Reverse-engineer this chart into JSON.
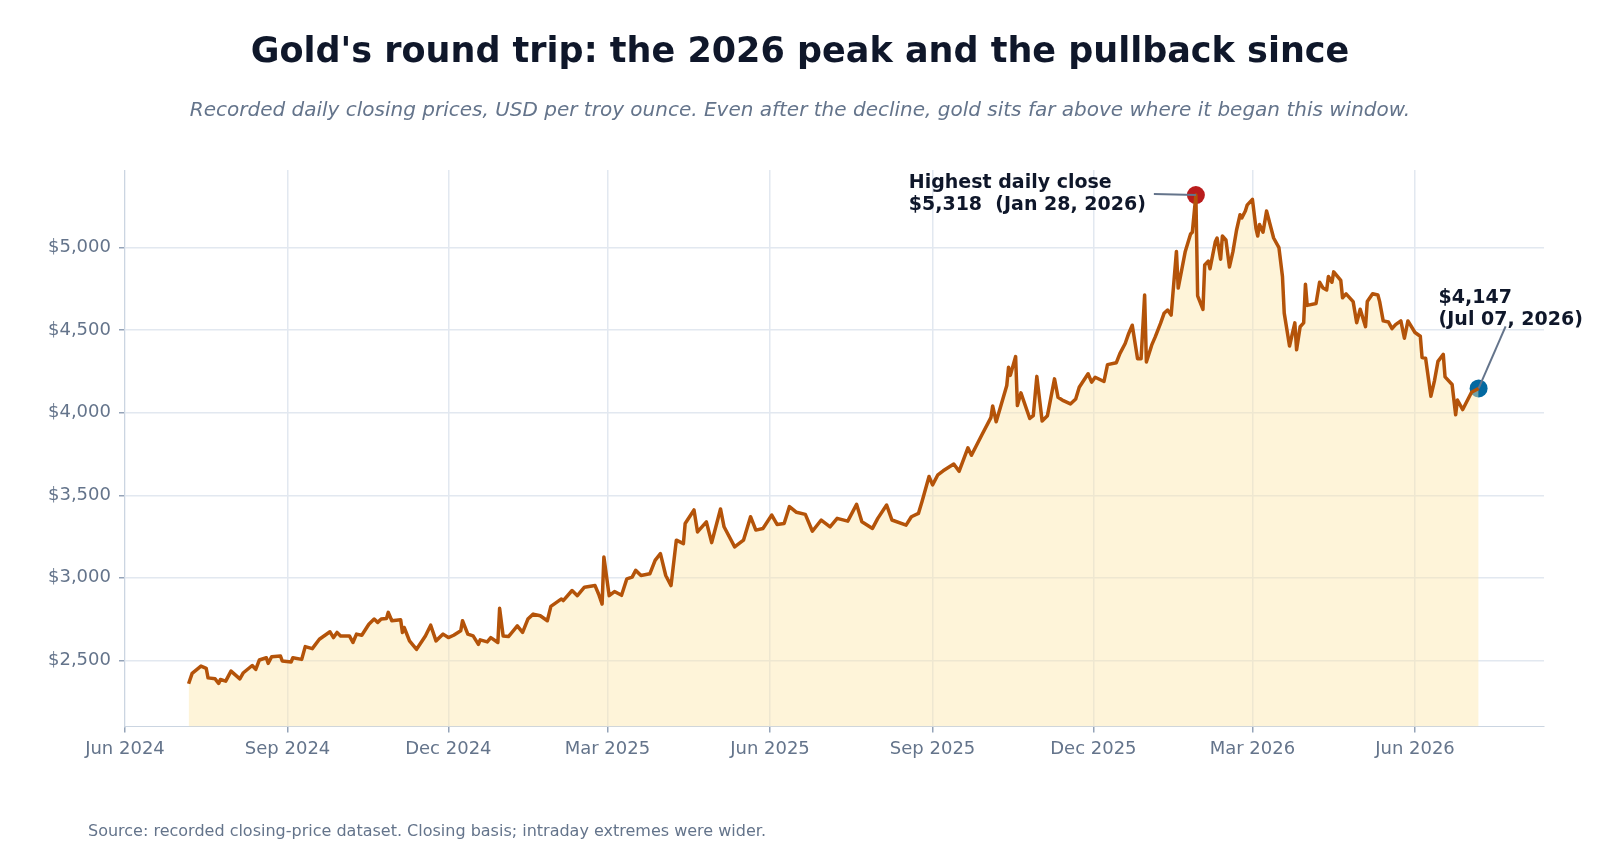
{
  "chart_data": {
    "type": "area",
    "title": "Gold's round trip: the 2026 peak and the pullback since",
    "subtitle": "Recorded daily closing prices, USD per troy ounce. Even after the decline, gold sits far above where it began this window.",
    "xlim": [
      "2024-06-01",
      "2026-08-13"
    ],
    "xticks": [
      {
        "value": "2024-06-01",
        "label": "Jun 2024"
      },
      {
        "value": "2024-09-01",
        "label": "Sep 2024"
      },
      {
        "value": "2024-12-01",
        "label": "Dec 2024"
      },
      {
        "value": "2025-03-01",
        "label": "Mar 2025"
      },
      {
        "value": "2025-06-01",
        "label": "Jun 2025"
      },
      {
        "value": "2025-09-01",
        "label": "Sep 2025"
      },
      {
        "value": "2025-12-01",
        "label": "Dec 2025"
      },
      {
        "value": "2026-03-01",
        "label": "Mar 2026"
      },
      {
        "value": "2026-06-01",
        "label": "Jun 2026"
      }
    ],
    "ylim": [
      2100,
      5470
    ],
    "yticks": [
      {
        "value": 2500,
        "label": "$2,500"
      },
      {
        "value": 3000,
        "label": "$3,000"
      },
      {
        "value": 3500,
        "label": "$3,500"
      },
      {
        "value": 4000,
        "label": "$4,000"
      },
      {
        "value": 4500,
        "label": "$4,500"
      },
      {
        "value": 5000,
        "label": "$5,000"
      }
    ],
    "grid": true,
    "legend": false,
    "series": [
      {
        "color": "#b45309",
        "x": [
          "2024-07-07",
          "2024-07-09",
          "2024-07-14",
          "2024-07-17",
          "2024-07-18",
          "2024-07-22",
          "2024-07-24",
          "2024-07-25",
          "2024-07-28",
          "2024-07-31",
          "2024-08-05",
          "2024-08-07",
          "2024-08-12",
          "2024-08-14",
          "2024-08-16",
          "2024-08-20",
          "2024-08-21",
          "2024-08-23",
          "2024-08-28",
          "2024-08-29",
          "2024-09-03",
          "2024-09-04",
          "2024-09-09",
          "2024-09-11",
          "2024-09-15",
          "2024-09-19",
          "2024-09-25",
          "2024-09-27",
          "2024-09-29",
          "2024-10-01",
          "2024-10-06",
          "2024-10-08",
          "2024-10-10",
          "2024-10-13",
          "2024-10-17",
          "2024-10-20",
          "2024-10-22",
          "2024-10-24",
          "2024-10-27",
          "2024-10-28",
          "2024-10-30",
          "2024-11-04",
          "2024-11-05",
          "2024-11-06",
          "2024-11-09",
          "2024-11-13",
          "2024-11-18",
          "2024-11-21",
          "2024-11-24",
          "2024-11-28",
          "2024-12-01",
          "2024-12-04",
          "2024-12-08",
          "2024-12-09",
          "2024-12-12",
          "2024-12-15",
          "2024-12-18",
          "2024-12-19",
          "2024-12-23",
          "2024-12-25",
          "2024-12-29",
          "2024-12-30",
          "2025-01-01",
          "2025-01-04",
          "2025-01-09",
          "2025-01-12",
          "2025-01-15",
          "2025-01-18",
          "2025-01-22",
          "2025-01-26",
          "2025-01-28",
          "2025-02-03",
          "2025-02-04",
          "2025-02-09",
          "2025-02-12",
          "2025-02-16",
          "2025-02-22",
          "2025-02-24",
          "2025-02-26",
          "2025-02-27",
          "2025-03-02",
          "2025-03-05",
          "2025-03-09",
          "2025-03-12",
          "2025-03-15",
          "2025-03-17",
          "2025-03-20",
          "2025-03-25",
          "2025-03-28",
          "2025-03-31",
          "2025-04-03",
          "2025-04-06",
          "2025-04-09",
          "2025-04-13",
          "2025-04-14",
          "2025-04-19",
          "2025-04-21",
          "2025-04-26",
          "2025-04-29",
          "2025-05-04",
          "2025-05-06",
          "2025-05-12",
          "2025-05-17",
          "2025-05-21",
          "2025-05-24",
          "2025-05-28",
          "2025-06-02",
          "2025-06-05",
          "2025-06-09",
          "2025-06-12",
          "2025-06-16",
          "2025-06-21",
          "2025-06-25",
          "2025-06-30",
          "2025-07-05",
          "2025-07-09",
          "2025-07-15",
          "2025-07-20",
          "2025-07-23",
          "2025-07-29",
          "2025-08-01",
          "2025-08-06",
          "2025-08-09",
          "2025-08-17",
          "2025-08-20",
          "2025-08-24",
          "2025-08-26",
          "2025-08-30",
          "2025-09-01",
          "2025-09-04",
          "2025-09-07",
          "2025-09-13",
          "2025-09-16",
          "2025-09-21",
          "2025-09-23",
          "2025-09-29",
          "2025-10-04",
          "2025-10-05",
          "2025-10-07",
          "2025-10-13",
          "2025-10-14",
          "2025-10-15",
          "2025-10-18",
          "2025-10-19",
          "2025-10-21",
          "2025-10-26",
          "2025-10-28",
          "2025-10-30",
          "2025-11-02",
          "2025-11-05",
          "2025-11-09",
          "2025-11-11",
          "2025-11-14",
          "2025-11-18",
          "2025-11-21",
          "2025-11-23",
          "2025-11-28",
          "2025-11-30",
          "2025-12-02",
          "2025-12-07",
          "2025-12-09",
          "2025-12-14",
          "2025-12-16",
          "2025-12-19",
          "2025-12-21",
          "2025-12-23",
          "2025-12-26",
          "2025-12-28",
          "2025-12-30",
          "2025-12-31",
          "2026-01-03",
          "2026-01-05",
          "2026-01-08",
          "2026-01-10",
          "2026-01-12",
          "2026-01-14",
          "2026-01-17",
          "2026-01-18",
          "2026-01-22",
          "2026-01-25",
          "2026-01-26",
          "2026-01-28",
          "2026-01-29",
          "2026-02-01",
          "2026-02-02",
          "2026-02-04",
          "2026-02-05",
          "2026-02-08",
          "2026-02-09",
          "2026-02-11",
          "2026-02-12",
          "2026-02-14",
          "2026-02-16",
          "2026-02-18",
          "2026-02-20",
          "2026-02-22",
          "2026-02-23",
          "2026-02-25",
          "2026-02-26",
          "2026-03-01",
          "2026-03-03",
          "2026-03-04",
          "2026-03-05",
          "2026-03-07",
          "2026-03-09",
          "2026-03-13",
          "2026-03-16",
          "2026-03-18",
          "2026-03-19",
          "2026-03-22",
          "2026-03-25",
          "2026-03-26",
          "2026-03-28",
          "2026-03-30",
          "2026-03-31",
          "2026-04-01",
          "2026-04-06",
          "2026-04-08",
          "2026-04-10",
          "2026-04-12",
          "2026-04-13",
          "2026-04-15",
          "2026-04-16",
          "2026-04-20",
          "2026-04-21",
          "2026-04-23",
          "2026-04-27",
          "2026-04-29",
          "2026-05-01",
          "2026-05-04",
          "2026-05-05",
          "2026-05-08",
          "2026-05-11",
          "2026-05-12",
          "2026-05-14",
          "2026-05-17",
          "2026-05-19",
          "2026-05-21",
          "2026-05-24",
          "2026-05-26",
          "2026-05-28",
          "2026-06-01",
          "2026-06-04",
          "2026-06-05",
          "2026-06-07",
          "2026-06-10",
          "2026-06-12",
          "2026-06-14",
          "2026-06-17",
          "2026-06-18",
          "2026-06-22",
          "2026-06-24",
          "2026-06-25",
          "2026-06-28",
          "2026-07-03",
          "2026-07-07"
        ],
        "values": [
          2358,
          2421,
          2465,
          2451,
          2394,
          2388,
          2360,
          2384,
          2374,
          2435,
          2388,
          2425,
          2469,
          2445,
          2502,
          2516,
          2482,
          2522,
          2526,
          2496,
          2490,
          2516,
          2506,
          2583,
          2571,
          2628,
          2673,
          2638,
          2669,
          2648,
          2648,
          2608,
          2659,
          2652,
          2719,
          2750,
          2730,
          2750,
          2754,
          2791,
          2740,
          2746,
          2669,
          2699,
          2618,
          2567,
          2648,
          2713,
          2618,
          2659,
          2638,
          2652,
          2679,
          2740,
          2659,
          2648,
          2597,
          2624,
          2612,
          2638,
          2608,
          2815,
          2648,
          2644,
          2709,
          2669,
          2750,
          2780,
          2770,
          2740,
          2827,
          2872,
          2862,
          2923,
          2892,
          2943,
          2953,
          2902,
          2841,
          3126,
          2892,
          2917,
          2894,
          2994,
          3004,
          3045,
          3014,
          3024,
          3106,
          3147,
          3014,
          2953,
          3228,
          3207,
          3329,
          3411,
          3278,
          3339,
          3213,
          3417,
          3309,
          3187,
          3228,
          3370,
          3289,
          3299,
          3380,
          3323,
          3329,
          3431,
          3397,
          3384,
          3282,
          3350,
          3309,
          3360,
          3343,
          3445,
          3339,
          3299,
          3360,
          3441,
          3350,
          3319,
          3370,
          3390,
          3461,
          3614,
          3563,
          3624,
          3648,
          3689,
          3645,
          3787,
          3742,
          3868,
          3970,
          4041,
          3945,
          4165,
          4276,
          4226,
          4340,
          4043,
          4120,
          3965,
          3982,
          4220,
          3950,
          3982,
          4205,
          4093,
          4073,
          4053,
          4083,
          4154,
          4236,
          4185,
          4215,
          4189,
          4291,
          4303,
          4358,
          4419,
          4480,
          4530,
          4327,
          4327,
          4713,
          4307,
          4409,
          4459,
          4541,
          4602,
          4622,
          4591,
          4977,
          4755,
          4977,
          5082,
          5093,
          5318,
          4708,
          4626,
          4895,
          4918,
          4872,
          5035,
          5058,
          4930,
          5070,
          5047,
          4883,
          4977,
          5105,
          5199,
          5180,
          5222,
          5257,
          5292,
          5117,
          5070,
          5140,
          5093,
          5222,
          5058,
          5000,
          4825,
          4603,
          4404,
          4544,
          4381,
          4521,
          4544,
          4778,
          4650,
          4661,
          4790,
          4755,
          4743,
          4825,
          4790,
          4853,
          4801,
          4696,
          4720,
          4673,
          4545,
          4627,
          4521,
          4673,
          4720,
          4713,
          4673,
          4556,
          4549,
          4509,
          4533,
          4556,
          4451,
          4556,
          4486,
          4463,
          4334,
          4330,
          4100,
          4193,
          4311,
          4353,
          4217,
          4171,
          3988,
          4077,
          4019,
          4124,
          4147
        ]
      },
      {
        "type": "scatter",
        "marker": "circle",
        "color": "#b91c1c",
        "x": [
          "2026-01-28"
        ],
        "values": [
          5318
        ]
      },
      {
        "type": "scatter",
        "marker": "circle",
        "color": "#0369a1",
        "x": [
          "2026-07-07"
        ],
        "values": [
          4147
        ]
      }
    ],
    "annotations": [
      {
        "text": "Highest daily close\n$5,318  (Jan 28, 2026)",
        "x": "2026-01-28",
        "y": 5318
      },
      {
        "text": "$4,147\n(Jul 07, 2026)",
        "x": "2026-07-07",
        "y": 4147
      },
      "Source: recorded closing-price dataset. Closing basis; intraday extremes were wider."
    ]
  }
}
